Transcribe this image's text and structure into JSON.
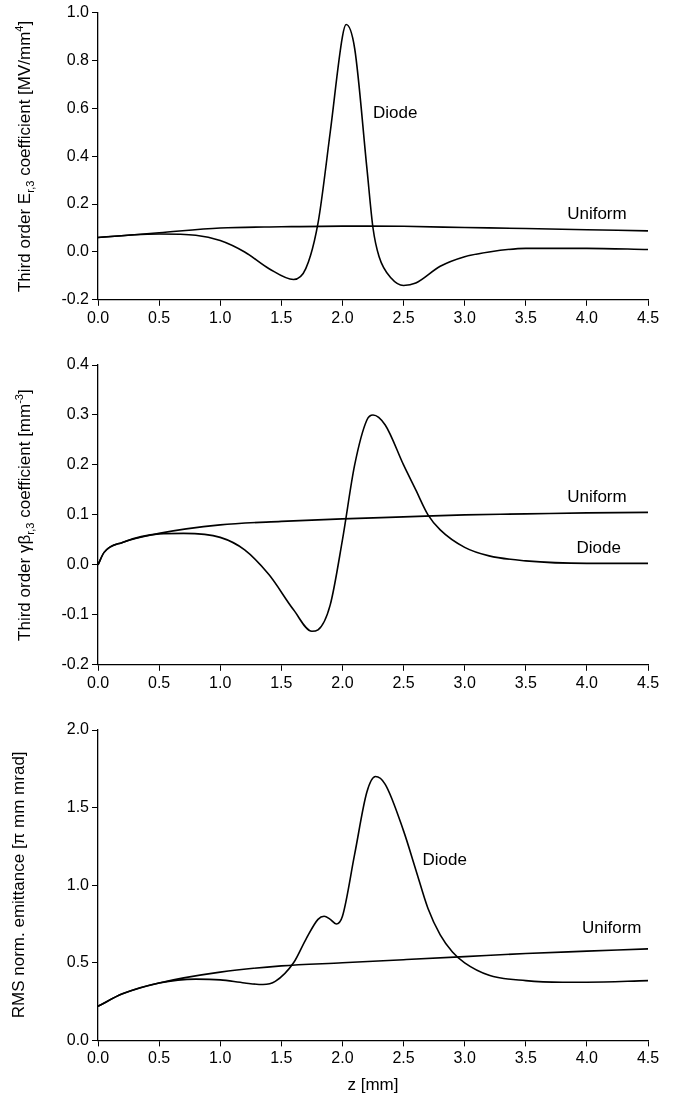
{
  "chart_data": [
    {
      "type": "line",
      "ylabel": "Third order E$_{r,3}$ coefficient [MV/mm$^{4}$]",
      "xlim": [
        0,
        4.5
      ],
      "xticks": [
        {
          "value": 0,
          "label": "0.0"
        },
        0.5,
        {
          "value": 1,
          "label": "1.0"
        },
        1.5,
        {
          "value": 2,
          "label": "2.0"
        },
        2.5,
        {
          "value": 3,
          "label": "3.0"
        },
        3.5,
        {
          "value": 4,
          "label": "4.0"
        },
        4.5
      ],
      "ylim": [
        -0.2,
        1.0
      ],
      "yticks": [
        -0.2,
        {
          "value": 0,
          "label": "0.0"
        },
        0.2,
        0.4,
        0.6,
        0.8,
        {
          "value": 1,
          "label": "1.0"
        }
      ],
      "series": [
        {
          "name": "Uniform",
          "color": "#000000",
          "x": [
            0,
            0.5,
            1.0,
            1.5,
            2.0,
            2.5,
            3.0,
            3.5,
            4.0,
            4.5
          ],
          "values": [
            0.06,
            0.08,
            0.1,
            0.105,
            0.108,
            0.107,
            0.102,
            0.098,
            0.093,
            0.088
          ]
        },
        {
          "name": "Diode",
          "color": "#000000",
          "x": [
            0,
            0.3,
            0.5,
            0.8,
            1.0,
            1.2,
            1.4,
            1.6,
            1.7,
            1.8,
            1.9,
            2.0,
            2.03,
            2.1,
            2.2,
            2.25,
            2.3,
            2.4,
            2.5,
            2.6,
            2.8,
            3.0,
            3.2,
            3.5,
            4.0,
            4.5
          ],
          "values": [
            0.06,
            0.072,
            0.075,
            0.07,
            0.048,
            0.0,
            -0.07,
            -0.115,
            -0.07,
            0.12,
            0.5,
            0.9,
            0.95,
            0.85,
            0.35,
            0.1,
            -0.02,
            -0.11,
            -0.14,
            -0.13,
            -0.06,
            -0.02,
            0.0,
            0.015,
            0.015,
            0.01
          ]
        }
      ]
    },
    {
      "type": "line",
      "ylabel": "Third order γβ$_{r,3}$ coefficient [mm$^{-3}$]",
      "xlim": [
        0,
        4.5
      ],
      "xticks": [
        {
          "value": 0,
          "label": "0.0"
        },
        0.5,
        {
          "value": 1,
          "label": "1.0"
        },
        1.5,
        {
          "value": 2,
          "label": "2.0"
        },
        2.5,
        {
          "value": 3,
          "label": "3.0"
        },
        3.5,
        {
          "value": 4,
          "label": "4.0"
        },
        4.5
      ],
      "ylim": [
        -0.2,
        0.4
      ],
      "yticks": [
        -0.2,
        -0.1,
        {
          "value": 0,
          "label": "0.0"
        },
        0.1,
        0.2,
        0.3,
        0.4
      ],
      "series": [
        {
          "name": "Uniform",
          "color": "#000000",
          "x": [
            0,
            0.05,
            0.2,
            0.5,
            1.0,
            1.5,
            2.0,
            2.5,
            3.0,
            3.5,
            4.0,
            4.5
          ],
          "values": [
            0,
            0.025,
            0.045,
            0.063,
            0.08,
            0.087,
            0.092,
            0.096,
            0.1,
            0.102,
            0.104,
            0.105
          ]
        },
        {
          "name": "Diode",
          "color": "#000000",
          "x": [
            0,
            0.05,
            0.2,
            0.5,
            0.7,
            1.0,
            1.2,
            1.4,
            1.6,
            1.75,
            1.8,
            1.9,
            2.0,
            2.1,
            2.2,
            2.25,
            2.35,
            2.5,
            2.6,
            2.7,
            2.8,
            3.0,
            3.2,
            3.5,
            4.0,
            4.5
          ],
          "values": [
            0,
            0.025,
            0.045,
            0.062,
            0.063,
            0.055,
            0.03,
            -0.02,
            -0.09,
            -0.133,
            -0.13,
            -0.08,
            0.05,
            0.2,
            0.29,
            0.3,
            0.28,
            0.2,
            0.15,
            0.1,
            0.07,
            0.035,
            0.018,
            0.008,
            0.003,
            0.003
          ]
        }
      ]
    },
    {
      "type": "line",
      "xlabel": "z [mm]",
      "ylabel": "RMS norm. emittance [π mm mrad]",
      "xlim": [
        0,
        4.5
      ],
      "xticks": [
        {
          "value": 0,
          "label": "0.0"
        },
        0.5,
        {
          "value": 1,
          "label": "1.0"
        },
        1.5,
        {
          "value": 2,
          "label": "2.0"
        },
        2.5,
        {
          "value": 3,
          "label": "3.0"
        },
        3.5,
        {
          "value": 4,
          "label": "4.0"
        },
        4.5
      ],
      "ylim": [
        0,
        2.0
      ],
      "yticks": [
        {
          "value": 0,
          "label": "0.0"
        },
        0.5,
        {
          "value": 1,
          "label": "1.0"
        },
        1.5,
        {
          "value": 2,
          "label": "2.0"
        }
      ],
      "series": [
        {
          "name": "Uniform",
          "color": "#000000",
          "x": [
            0,
            0.2,
            0.5,
            1.0,
            1.5,
            2.0,
            2.5,
            3.0,
            3.5,
            4.0,
            4.5
          ],
          "values": [
            0.22,
            0.3,
            0.37,
            0.44,
            0.48,
            0.5,
            0.52,
            0.54,
            0.56,
            0.575,
            0.59
          ]
        },
        {
          "name": "Diode",
          "color": "#000000",
          "x": [
            0,
            0.2,
            0.5,
            0.8,
            1.0,
            1.2,
            1.35,
            1.45,
            1.6,
            1.7,
            1.8,
            1.85,
            1.9,
            1.95,
            2.0,
            2.1,
            2.2,
            2.27,
            2.35,
            2.5,
            2.6,
            2.7,
            2.8,
            2.9,
            3.0,
            3.2,
            3.5,
            3.8,
            4.0,
            4.5
          ],
          "values": [
            0.22,
            0.3,
            0.37,
            0.395,
            0.39,
            0.37,
            0.36,
            0.38,
            0.5,
            0.65,
            0.78,
            0.8,
            0.78,
            0.75,
            0.8,
            1.2,
            1.6,
            1.7,
            1.65,
            1.35,
            1.1,
            0.85,
            0.68,
            0.57,
            0.5,
            0.42,
            0.385,
            0.375,
            0.375,
            0.385
          ]
        }
      ]
    }
  ]
}
